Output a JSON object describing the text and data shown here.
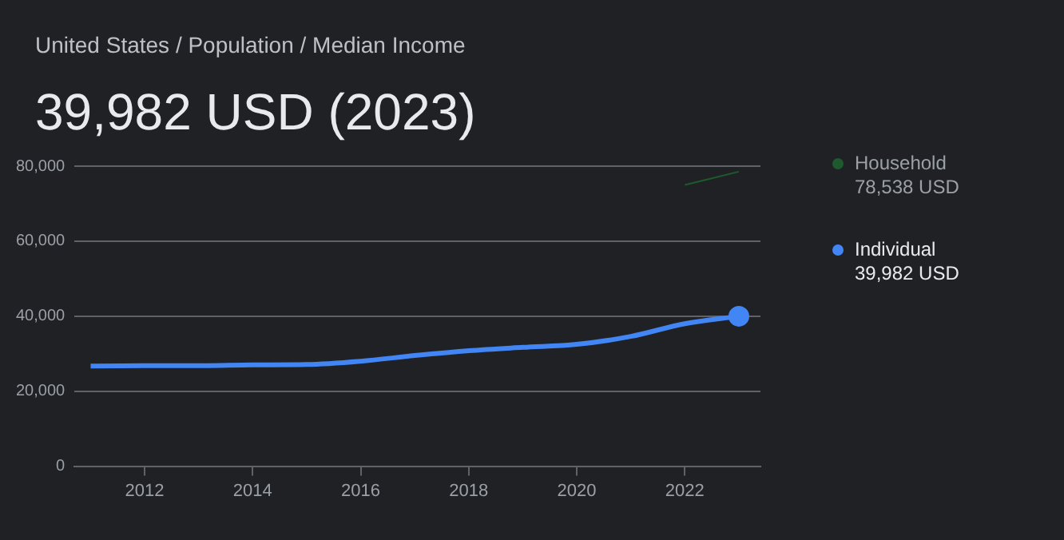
{
  "chart_data": {
    "type": "line",
    "title": "39,982 USD (2023)",
    "annotations": [
      "United States / Population / Median Income",
      "78,538 USD",
      "39,982 USD"
    ],
    "series": [
      {
        "name": "Household",
        "color": "#1e5a2e",
        "x": [
          2022,
          2023
        ],
        "values": [
          75000,
          78538
        ]
      },
      {
        "name": "Individual",
        "color": "#4285f4",
        "x": [
          2011,
          2012,
          2013,
          2014,
          2015,
          2016,
          2017,
          2018,
          2019,
          2020,
          2021,
          2022,
          2023
        ],
        "values": [
          26700,
          26800,
          26800,
          27000,
          27100,
          28000,
          29500,
          30800,
          31700,
          32500,
          34600,
          38000,
          39982
        ]
      }
    ],
    "xlim": [
      2010.7,
      2023.4
    ],
    "xticks": [
      2012,
      2014,
      2016,
      2018,
      2020,
      2022
    ],
    "ylim": [
      0,
      80000
    ],
    "yticks": [
      {
        "value": 0,
        "label": "0"
      },
      {
        "value": 20000,
        "label": "20,000"
      },
      {
        "value": 40000,
        "label": "40,000"
      },
      {
        "value": 60000,
        "label": "60,000"
      },
      {
        "value": 80000,
        "label": "80,000"
      }
    ],
    "grid": "y",
    "legend": "right"
  }
}
